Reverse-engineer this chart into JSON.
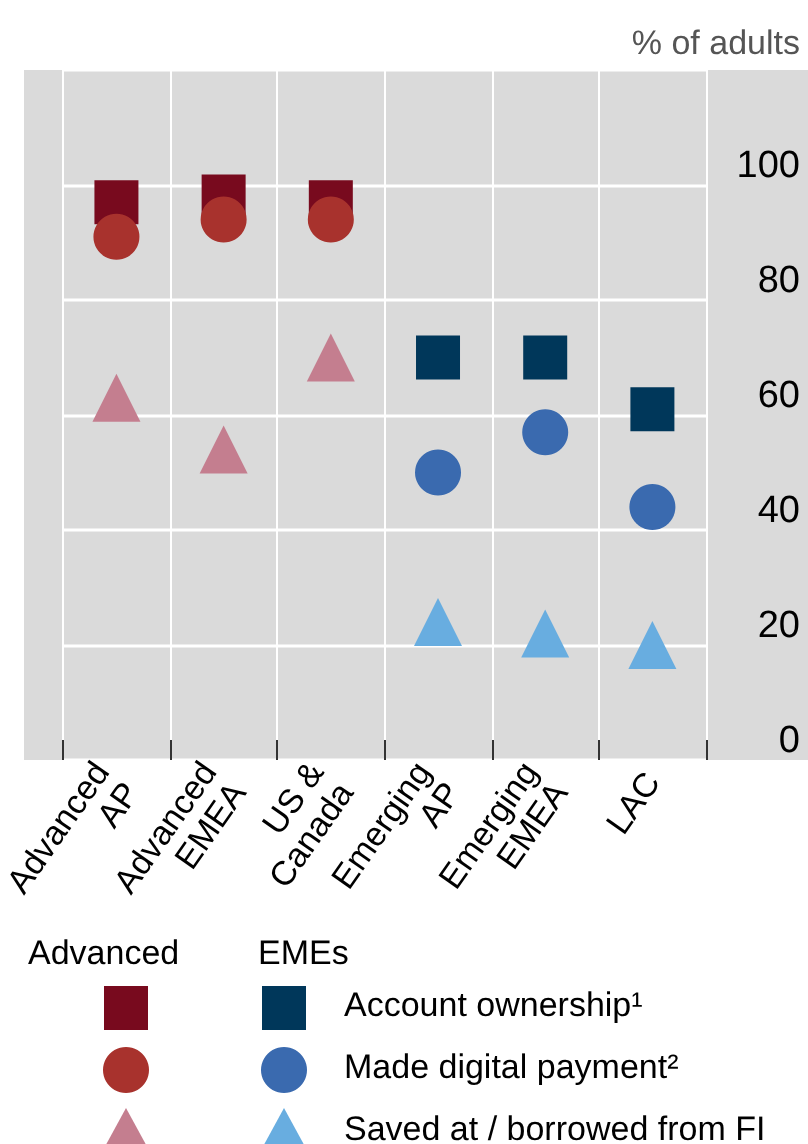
{
  "chart_data": {
    "type": "scatter",
    "ylabel": "% of adults",
    "categories": [
      "Advanced\nAP",
      "Advanced\nEMEA",
      "US &\nCanada",
      "Emerging\nAP",
      "Emerging\nEMEA",
      "LAC"
    ],
    "ylim": [
      0,
      120
    ],
    "yticks": [
      0,
      20,
      40,
      60,
      80,
      100
    ],
    "grid": true,
    "legend": "bottom",
    "annotations": [
      "Advanced",
      "EMEs"
    ],
    "series": [
      {
        "name": "Account ownership¹",
        "marker": "square",
        "colors": [
          "#780a1e",
          "#780a1e",
          "#780a1e",
          "#00375a",
          "#00375a",
          "#00375a"
        ],
        "values": [
          97,
          98,
          97,
          70,
          70,
          61
        ]
      },
      {
        "name": "Made digital payment²",
        "marker": "circle",
        "colors": [
          "#a8322d",
          "#a8322d",
          "#a8322d",
          "#3a6aaf",
          "#3a6aaf",
          "#3a6aaf"
        ],
        "values": [
          91,
          94,
          94,
          50,
          57,
          44
        ]
      },
      {
        "name": "Saved at / borrowed from FI",
        "marker": "triangle",
        "colors": [
          "#c47e8f",
          "#c47e8f",
          "#c47e8f",
          "#68ade0",
          "#68ade0",
          "#68ade0"
        ],
        "values": [
          63,
          54,
          70,
          24,
          22,
          20
        ]
      }
    ]
  }
}
